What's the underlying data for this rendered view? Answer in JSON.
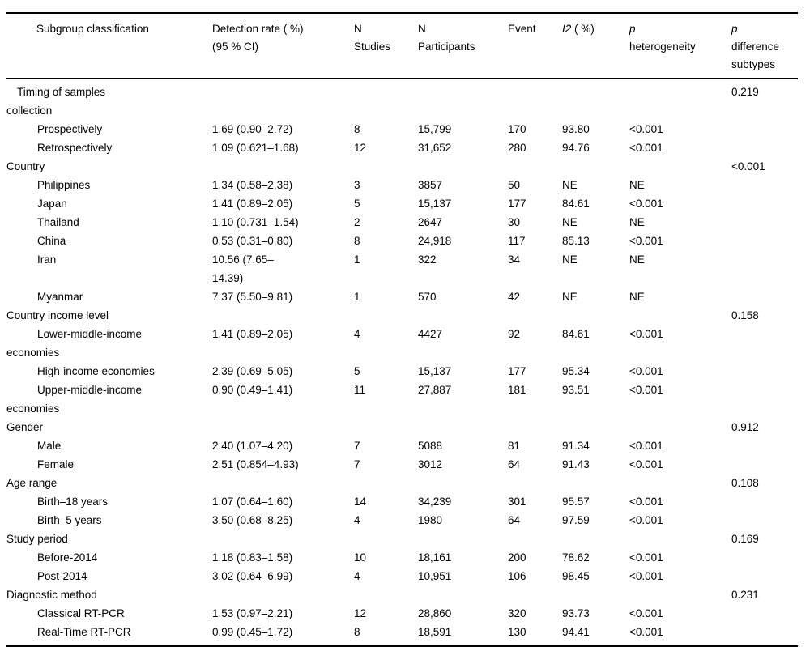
{
  "colors": {
    "background": "#ffffff",
    "text": "#000000",
    "rule": "#000000"
  },
  "table": {
    "columns": {
      "subgroup": "Subgroup classification",
      "detection": [
        "Detection rate ( %)",
        "(95 % CI)"
      ],
      "n_studies": [
        "N",
        "Studies"
      ],
      "n_participants": [
        "N",
        "Participants"
      ],
      "event": "Event",
      "i2_symbol": "I2",
      "i2_suffix": " ( %)",
      "p_symbol": "p",
      "p_heterogeneity_word": "heterogeneity",
      "p_difference_words": [
        "difference",
        "subtypes"
      ]
    },
    "rows": [
      {
        "type": "section-indent",
        "label": [
          "Timing of samples",
          "collection"
        ],
        "detection": "",
        "n_studies": "",
        "n_participants": "",
        "event": "",
        "i2": "",
        "p_het": "",
        "p_diff": "0.219"
      },
      {
        "type": "item",
        "label": "Prospectively",
        "detection": "1.69 (0.90–2.72)",
        "n_studies": "8",
        "n_participants": "15,799",
        "event": "170",
        "i2": "93.80",
        "p_het": "<0.001",
        "p_diff": ""
      },
      {
        "type": "item",
        "label": "Retrospectively",
        "detection": "1.09 (0.621–1.68)",
        "n_studies": "12",
        "n_participants": "31,652",
        "event": "280",
        "i2": "94.76",
        "p_het": "<0.001",
        "p_diff": ""
      },
      {
        "type": "section",
        "label": "Country",
        "detection": "",
        "n_studies": "",
        "n_participants": "",
        "event": "",
        "i2": "",
        "p_het": "",
        "p_diff": "<0.001"
      },
      {
        "type": "item",
        "label": "Philippines",
        "detection": "1.34 (0.58–2.38)",
        "n_studies": "3",
        "n_participants": "3857",
        "event": "50",
        "i2": "NE",
        "p_het": "NE",
        "p_diff": ""
      },
      {
        "type": "item",
        "label": "Japan",
        "detection": "1.41 (0.89–2.05)",
        "n_studies": "5",
        "n_participants": "15,137",
        "event": "177",
        "i2": "84.61",
        "p_het": "<0.001",
        "p_diff": ""
      },
      {
        "type": "item",
        "label": "Thailand",
        "detection": "1.10 (0.731–1.54)",
        "n_studies": "2",
        "n_participants": "2647",
        "event": "30",
        "i2": "NE",
        "p_het": "NE",
        "p_diff": ""
      },
      {
        "type": "item",
        "label": "China",
        "detection": "0.53 (0.31–0.80)",
        "n_studies": "8",
        "n_participants": "24,918",
        "event": "117",
        "i2": "85.13",
        "p_het": "<0.001",
        "p_diff": ""
      },
      {
        "type": "item",
        "label": "Iran",
        "detection": [
          "10.56 (7.65–",
          "14.39)"
        ],
        "n_studies": "1",
        "n_participants": "322",
        "event": "34",
        "i2": "NE",
        "p_het": "NE",
        "p_diff": ""
      },
      {
        "type": "item",
        "label": "Myanmar",
        "detection": "7.37 (5.50–9.81)",
        "n_studies": "1",
        "n_participants": "570",
        "event": "42",
        "i2": "NE",
        "p_het": "NE",
        "p_diff": ""
      },
      {
        "type": "section",
        "label": "Country income level",
        "detection": "",
        "n_studies": "",
        "n_participants": "",
        "event": "",
        "i2": "",
        "p_het": "",
        "p_diff": "0.158"
      },
      {
        "type": "item",
        "label": [
          "Lower-middle-income",
          "economies"
        ],
        "detection": "1.41 (0.89–2.05)",
        "n_studies": "4",
        "n_participants": "4427",
        "event": "92",
        "i2": "84.61",
        "p_het": "<0.001",
        "p_diff": ""
      },
      {
        "type": "item",
        "label": "High-income economies",
        "detection": "2.39 (0.69–5.05)",
        "n_studies": "5",
        "n_participants": "15,137",
        "event": "177",
        "i2": "95.34",
        "p_het": "<0.001",
        "p_diff": ""
      },
      {
        "type": "item",
        "label": [
          "Upper-middle-income",
          "economies"
        ],
        "detection": "0.90 (0.49–1.41)",
        "n_studies": "11",
        "n_participants": "27,887",
        "event": "181",
        "i2": "93.51",
        "p_het": "<0.001",
        "p_diff": ""
      },
      {
        "type": "section",
        "label": "Gender",
        "detection": "",
        "n_studies": "",
        "n_participants": "",
        "event": "",
        "i2": "",
        "p_het": "",
        "p_diff": "0.912"
      },
      {
        "type": "item",
        "label": "Male",
        "detection": "2.40 (1.07–4.20)",
        "n_studies": "7",
        "n_participants": "5088",
        "event": "81",
        "i2": "91.34",
        "p_het": "<0.001",
        "p_diff": ""
      },
      {
        "type": "item",
        "label": "Female",
        "detection": "2.51 (0.854–4.93)",
        "n_studies": "7",
        "n_participants": "3012",
        "event": "64",
        "i2": "91.43",
        "p_het": "<0.001",
        "p_diff": ""
      },
      {
        "type": "section",
        "label": "Age range",
        "detection": "",
        "n_studies": "",
        "n_participants": "",
        "event": "",
        "i2": "",
        "p_het": "",
        "p_diff": "0.108"
      },
      {
        "type": "item",
        "label": "Birth–18 years",
        "detection": "1.07 (0.64–1.60)",
        "n_studies": "14",
        "n_participants": "34,239",
        "event": "301",
        "i2": "95.57",
        "p_het": "<0.001",
        "p_diff": ""
      },
      {
        "type": "item",
        "label": "Birth–5 years",
        "detection": "3.50 (0.68–8.25)",
        "n_studies": "4",
        "n_participants": "1980",
        "event": "64",
        "i2": "97.59",
        "p_het": "<0.001",
        "p_diff": ""
      },
      {
        "type": "section",
        "label": "Study period",
        "detection": "",
        "n_studies": "",
        "n_participants": "",
        "event": "",
        "i2": "",
        "p_het": "",
        "p_diff": "0.169"
      },
      {
        "type": "item",
        "label": "Before-2014",
        "detection": "1.18 (0.83–1.58)",
        "n_studies": "10",
        "n_participants": "18,161",
        "event": "200",
        "i2": "78.62",
        "p_het": "<0.001",
        "p_diff": ""
      },
      {
        "type": "item",
        "label": "Post-2014",
        "detection": "3.02 (0.64–6.99)",
        "n_studies": "4",
        "n_participants": "10,951",
        "event": "106",
        "i2": "98.45",
        "p_het": "<0.001",
        "p_diff": ""
      },
      {
        "type": "section",
        "label": "Diagnostic method",
        "detection": "",
        "n_studies": "",
        "n_participants": "",
        "event": "",
        "i2": "",
        "p_het": "",
        "p_diff": "0.231"
      },
      {
        "type": "item",
        "label": "Classical RT-PCR",
        "detection": "1.53 (0.97–2.21)",
        "n_studies": "12",
        "n_participants": "28,860",
        "event": "320",
        "i2": "93.73",
        "p_het": "<0.001",
        "p_diff": ""
      },
      {
        "type": "item",
        "label": "Real-Time RT-PCR",
        "detection": "0.99 (0.45–1.72)",
        "n_studies": "8",
        "n_participants": "18,591",
        "event": "130",
        "i2": "94.41",
        "p_het": "<0.001",
        "p_diff": ""
      }
    ]
  }
}
